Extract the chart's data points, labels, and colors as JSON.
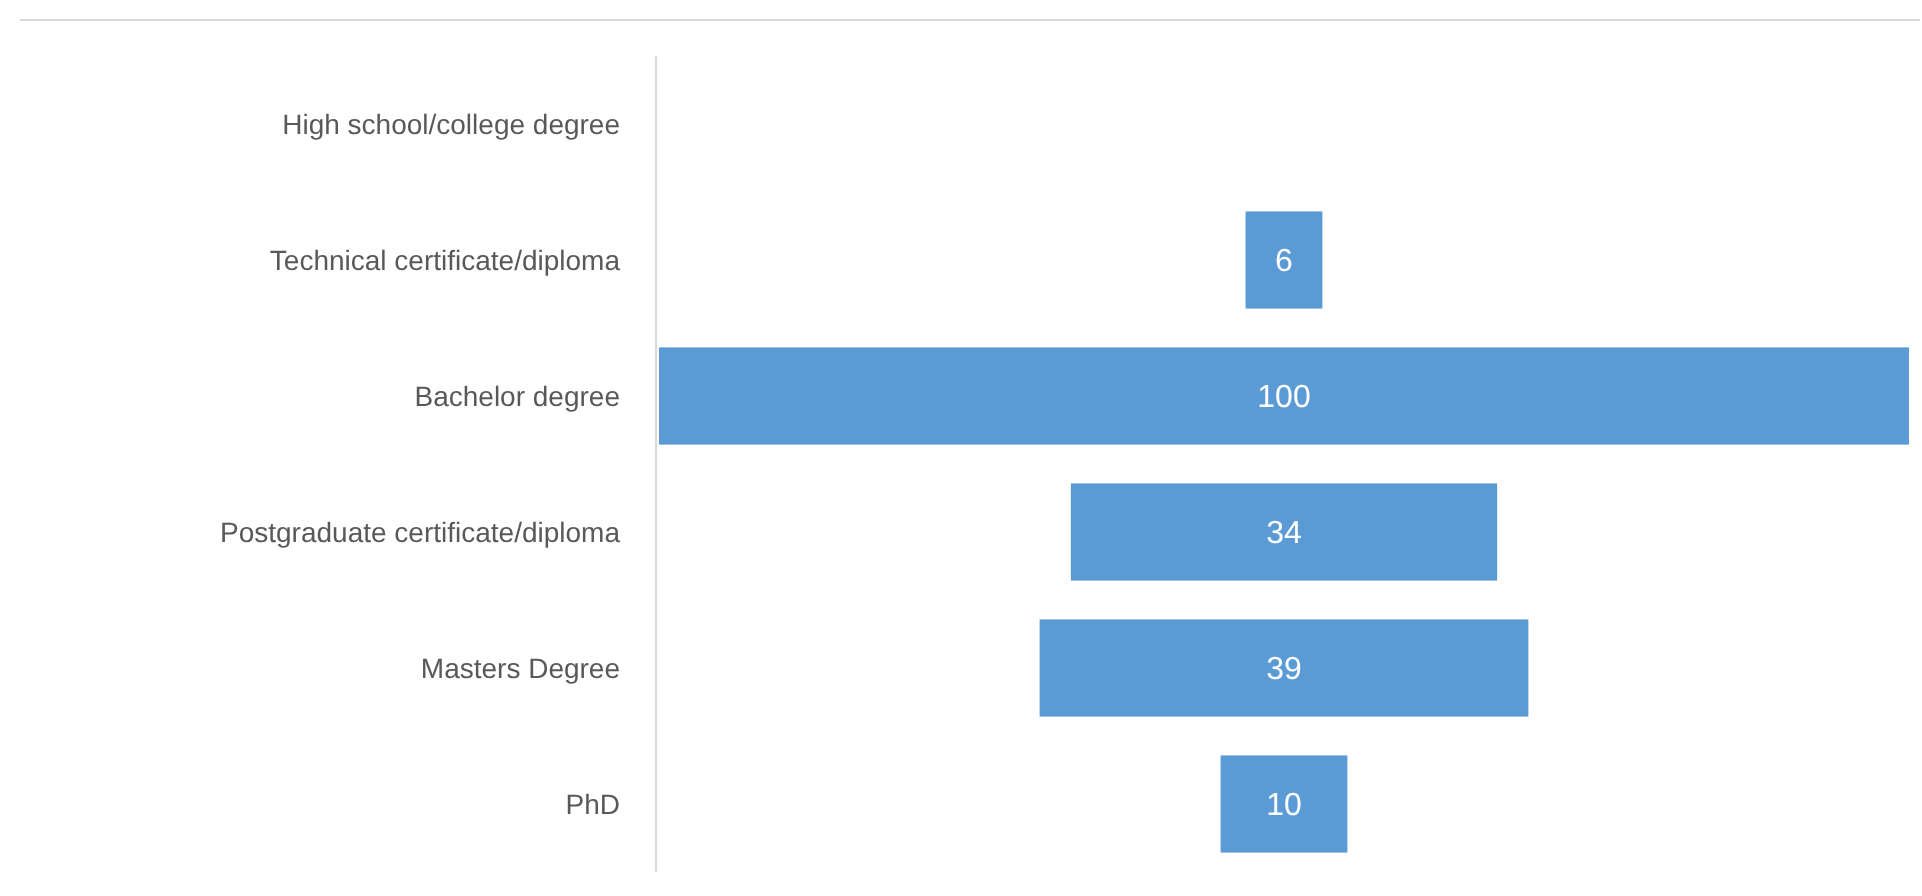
{
  "chart_data": {
    "type": "other",
    "categories": [
      "High school/college degree",
      "Technical certificate/diploma",
      "Bachelor degree",
      "Postgraduate certificate/diploma",
      "Masters Degree",
      "PhD"
    ],
    "values": [
      null,
      6,
      100,
      34,
      39,
      10
    ],
    "value_labels": [
      null,
      "6",
      "100",
      "34",
      "39",
      "10"
    ],
    "color": "#5b9bd5"
  }
}
